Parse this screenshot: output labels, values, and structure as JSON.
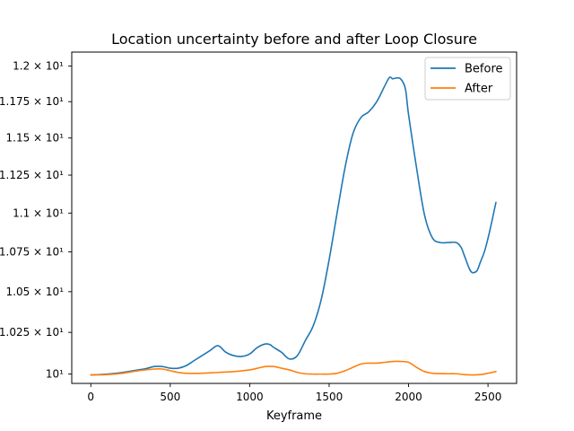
{
  "chart_data": {
    "type": "line",
    "title": "Location uncertainty before and after Loop Closure",
    "xlabel": "Keyframe",
    "ylabel": "",
    "xlim": [
      -120,
      2680
    ],
    "ylim": [
      9.945,
      12.1
    ],
    "y_scale": "log",
    "grid": false,
    "legend_position": "top-right",
    "x_ticks": [
      {
        "value": 0,
        "label": "0"
      },
      {
        "value": 500,
        "label": "500"
      },
      {
        "value": 1000,
        "label": "1000"
      },
      {
        "value": 1500,
        "label": "1500"
      },
      {
        "value": 2000,
        "label": "2000"
      },
      {
        "value": 2500,
        "label": "2500"
      }
    ],
    "y_ticks": [
      {
        "value": 10,
        "label": "10¹"
      },
      {
        "value": 10.25,
        "label": "1.025 × 10¹"
      },
      {
        "value": 10.5,
        "label": "1.05 × 10¹"
      },
      {
        "value": 10.75,
        "label": "1.075 × 10¹"
      },
      {
        "value": 11.0,
        "label": "1.1 × 10¹"
      },
      {
        "value": 11.25,
        "label": "1.125 × 10¹"
      },
      {
        "value": 11.5,
        "label": "1.15 × 10¹"
      },
      {
        "value": 11.75,
        "label": "1.175 × 10¹"
      },
      {
        "value": 12.0,
        "label": "1.2 × 10¹"
      }
    ],
    "series": [
      {
        "name": "Before",
        "color": "#1f77b4",
        "x": [
          0,
          100,
          200,
          300,
          350,
          400,
          450,
          500,
          550,
          600,
          650,
          700,
          750,
          800,
          850,
          900,
          950,
          1000,
          1050,
          1100,
          1130,
          1150,
          1200,
          1250,
          1300,
          1350,
          1400,
          1450,
          1500,
          1550,
          1600,
          1650,
          1700,
          1750,
          1800,
          1850,
          1880,
          1900,
          1920,
          1950,
          1980,
          2000,
          2050,
          2100,
          2150,
          2200,
          2250,
          2300,
          2330,
          2350,
          2380,
          2400,
          2430,
          2450,
          2480,
          2510,
          2550
        ],
        "y": [
          9.995,
          10.0,
          10.01,
          10.025,
          10.033,
          10.045,
          10.045,
          10.035,
          10.035,
          10.05,
          10.08,
          10.11,
          10.14,
          10.17,
          10.13,
          10.11,
          10.105,
          10.12,
          10.16,
          10.18,
          10.175,
          10.16,
          10.13,
          10.09,
          10.11,
          10.2,
          10.29,
          10.45,
          10.7,
          11.0,
          11.3,
          11.53,
          11.64,
          11.68,
          11.75,
          11.86,
          11.92,
          11.91,
          11.915,
          11.91,
          11.84,
          11.66,
          11.3,
          10.99,
          10.84,
          10.81,
          10.81,
          10.81,
          10.78,
          10.73,
          10.65,
          10.62,
          10.63,
          10.68,
          10.76,
          10.88,
          11.07
        ]
      },
      {
        "name": "After",
        "color": "#ff7f0e",
        "x": [
          0,
          100,
          200,
          300,
          400,
          450,
          500,
          550,
          600,
          700,
          800,
          900,
          1000,
          1050,
          1100,
          1150,
          1200,
          1250,
          1300,
          1350,
          1400,
          1450,
          1500,
          1550,
          1600,
          1650,
          1700,
          1750,
          1800,
          1850,
          1900,
          1950,
          2000,
          2050,
          2100,
          2150,
          2200,
          2250,
          2300,
          2350,
          2400,
          2450,
          2500,
          2550
        ],
        "y": [
          9.995,
          9.997,
          10.005,
          10.02,
          10.03,
          10.03,
          10.02,
          10.01,
          10.005,
          10.005,
          10.01,
          10.015,
          10.025,
          10.035,
          10.045,
          10.045,
          10.035,
          10.025,
          10.01,
          10.002,
          10.0,
          10.0,
          10.0,
          10.005,
          10.02,
          10.04,
          10.06,
          10.065,
          10.065,
          10.07,
          10.075,
          10.075,
          10.07,
          10.04,
          10.015,
          10.005,
          10.003,
          10.002,
          10.002,
          9.997,
          9.995,
          9.997,
          10.005,
          10.015
        ]
      }
    ]
  }
}
